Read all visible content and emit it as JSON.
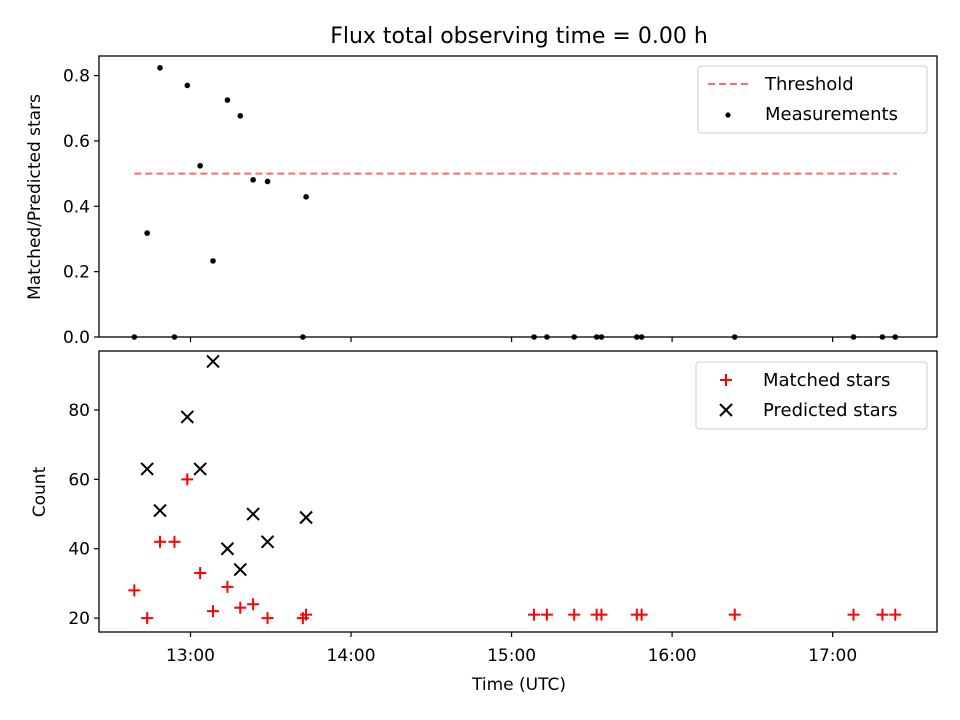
{
  "chart_data": {
    "title": "Flux total observing time = 0.00 h",
    "xlabel": "Time (UTC)",
    "x_unit": "hours UTC (decimal)",
    "xlim": [
      12.43,
      17.65
    ],
    "xticks": [
      {
        "value": 13.0,
        "label": "13:00"
      },
      {
        "value": 14.0,
        "label": "14:00"
      },
      {
        "value": 15.0,
        "label": "15:00"
      },
      {
        "value": 16.0,
        "label": "16:00"
      },
      {
        "value": 17.0,
        "label": "17:00"
      }
    ],
    "subplots": [
      {
        "type": "scatter",
        "ylabel": "Matched/Predicted stars",
        "ylim": [
          0.0,
          0.86
        ],
        "yticks": [
          "0.0",
          "0.2",
          "0.4",
          "0.6",
          "0.8"
        ],
        "grid": false,
        "legend_position": "upper right",
        "series": [
          {
            "name": "Threshold",
            "kind": "line",
            "style": "dashed",
            "color": "#ff6b6b",
            "x": [
              12.65,
              17.4
            ],
            "y": [
              0.5,
              0.5
            ]
          },
          {
            "name": "Measurements",
            "kind": "scatter",
            "marker": "dot",
            "color": "#000000",
            "x": [
              12.65,
              12.73,
              12.81,
              12.9,
              12.98,
              13.06,
              13.14,
              13.23,
              13.31,
              13.39,
              13.48,
              13.7,
              13.72,
              15.14,
              15.22,
              15.39,
              15.53,
              15.56,
              15.78,
              15.81,
              16.39,
              17.13,
              17.31,
              17.39
            ],
            "y": [
              0.0,
              0.318,
              0.824,
              0.0,
              0.77,
              0.524,
              0.233,
              0.725,
              0.677,
              0.481,
              0.476,
              0.0,
              0.429,
              0.0,
              0.0,
              0.0,
              0.0,
              0.0,
              0.0,
              0.0,
              0.0,
              0.0,
              0.0,
              0.0
            ]
          }
        ]
      },
      {
        "type": "scatter",
        "ylabel": "Count",
        "ylim": [
          16,
          97
        ],
        "yticks": [
          "20",
          "40",
          "60",
          "80"
        ],
        "grid": false,
        "legend_position": "upper right",
        "series": [
          {
            "name": "Matched stars",
            "kind": "scatter",
            "marker": "plus",
            "color": "#ff0000",
            "x": [
              12.65,
              12.73,
              12.81,
              12.9,
              12.98,
              13.06,
              13.14,
              13.23,
              13.31,
              13.39,
              13.48,
              13.7,
              13.72,
              15.14,
              15.22,
              15.39,
              15.53,
              15.56,
              15.78,
              15.81,
              16.39,
              17.13,
              17.31,
              17.39
            ],
            "y": [
              28,
              20,
              42,
              42,
              60,
              33,
              22,
              29,
              23,
              24,
              20,
              20,
              21,
              21,
              21,
              21,
              21,
              21,
              21,
              21,
              21,
              21,
              21,
              21
            ]
          },
          {
            "name": "Predicted stars",
            "kind": "scatter",
            "marker": "x",
            "color": "#000000",
            "x": [
              12.73,
              12.81,
              12.98,
              13.06,
              13.14,
              13.23,
              13.31,
              13.39,
              13.48,
              13.72
            ],
            "y": [
              63,
              51,
              78,
              63,
              94,
              40,
              34,
              50,
              42,
              49
            ]
          }
        ]
      }
    ]
  }
}
